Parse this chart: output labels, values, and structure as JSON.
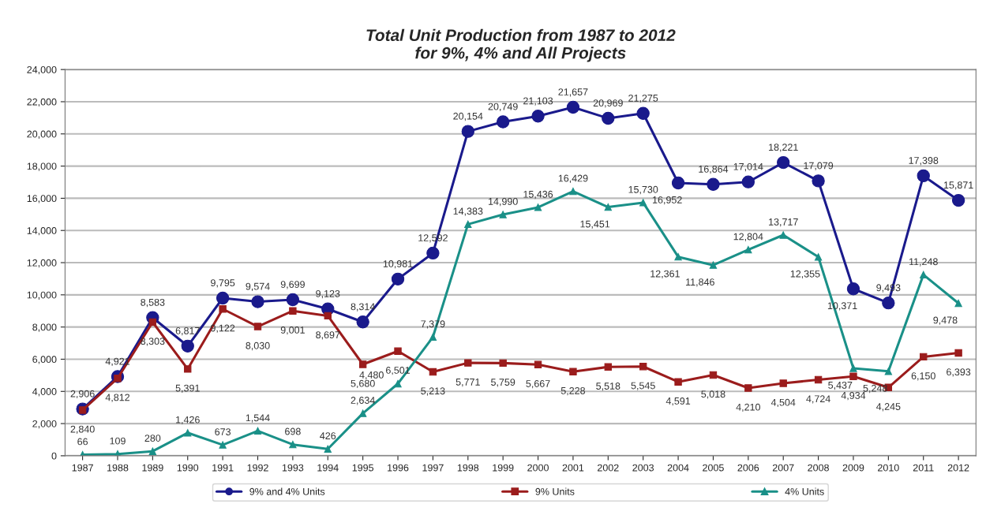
{
  "chart_data": {
    "type": "line",
    "title": "Total Unit Production from 1987 to 2012\nfor 9%, 4% and All Projects",
    "categories": [
      "1987",
      "1988",
      "1989",
      "1990",
      "1991",
      "1992",
      "1993",
      "1994",
      "1995",
      "1996",
      "1997",
      "1998",
      "1999",
      "2000",
      "2001",
      "2002",
      "2003",
      "2004",
      "2005",
      "2006",
      "2007",
      "2008",
      "2009",
      "2010",
      "2011",
      "2012"
    ],
    "series": [
      {
        "name": "9% and 4% Units",
        "color": "#1a1a8c",
        "marker": "circle",
        "values": [
          2906,
          4921,
          8583,
          6817,
          9795,
          9574,
          9699,
          9123,
          8314,
          10981,
          12592,
          20154,
          20749,
          21103,
          21657,
          20969,
          21275,
          16952,
          16864,
          17014,
          18221,
          17079,
          10371,
          9493,
          17398,
          15871
        ],
        "value_labels": [
          "2,906",
          "4,921",
          "8,583",
          "6,817",
          "9,795",
          "9,574",
          "9,699",
          "9,123",
          "8,314",
          "10,981",
          "12,592",
          "20,154",
          "20,749",
          "21,103",
          "21,657",
          "20,969",
          "21,275",
          "16,952",
          "16,864",
          "17,014",
          "18,221",
          "17,079",
          "10,371",
          "9,493",
          "17,398",
          "15,871"
        ]
      },
      {
        "name": "9% Units",
        "color": "#9b1c1c",
        "marker": "square",
        "values": [
          2840,
          4812,
          8303,
          5391,
          9122,
          8030,
          9001,
          8697,
          5680,
          6501,
          5213,
          5771,
          5759,
          5667,
          5228,
          5518,
          5545,
          4591,
          5018,
          4210,
          4504,
          4724,
          4934,
          4245,
          6150,
          6393
        ],
        "value_labels": [
          "2,840",
          "4,812",
          "8,303",
          "5,391",
          "9,122",
          "8,030",
          "9,001",
          "8,697",
          "5,680",
          "6,501",
          "5,213",
          "5,771",
          "5,759",
          "5,667",
          "5,228",
          "5,518",
          "5,545",
          "4,591",
          "5,018",
          "4,210",
          "4,504",
          "4,724",
          "4,934",
          "4,245",
          "6,150",
          "6,393"
        ]
      },
      {
        "name": "4% Units",
        "color": "#1a9088",
        "marker": "triangle",
        "values": [
          66,
          109,
          280,
          1426,
          673,
          1544,
          698,
          426,
          2634,
          4480,
          7379,
          14383,
          14990,
          15436,
          16429,
          15451,
          15730,
          12361,
          11846,
          12804,
          13717,
          12355,
          5437,
          5248,
          11248,
          9478
        ],
        "value_labels": [
          "66",
          "109",
          "280",
          "1,426",
          "673",
          "1,544",
          "698",
          "426",
          "2,634",
          "4,480",
          "7,379",
          "14,383",
          "14,990",
          "15,436",
          "16,429",
          "15,451",
          "15,730",
          "12,361",
          "11,846",
          "12,804",
          "13,717",
          "12,355",
          "5,437",
          "5,248",
          "11,248",
          "9,478"
        ]
      }
    ],
    "ylim": [
      0,
      24000
    ],
    "yticks": [
      {
        "value": 0,
        "label": "0"
      },
      {
        "value": 2000,
        "label": "2,000"
      },
      {
        "value": 4000,
        "label": "4,000"
      },
      {
        "value": 6000,
        "label": "6,000"
      },
      {
        "value": 8000,
        "label": "8,000"
      },
      {
        "value": 10000,
        "label": "10,000"
      },
      {
        "value": 12000,
        "label": "12,000"
      },
      {
        "value": 14000,
        "label": "14,000"
      },
      {
        "value": 16000,
        "label": "16,000"
      },
      {
        "value": 18000,
        "label": "18,000"
      },
      {
        "value": 20000,
        "label": "20,000"
      },
      {
        "value": 22000,
        "label": "22,000"
      },
      {
        "value": 24000,
        "label": "24,000"
      }
    ],
    "grid": "y",
    "legend": "bottom",
    "line_style": "solid"
  }
}
